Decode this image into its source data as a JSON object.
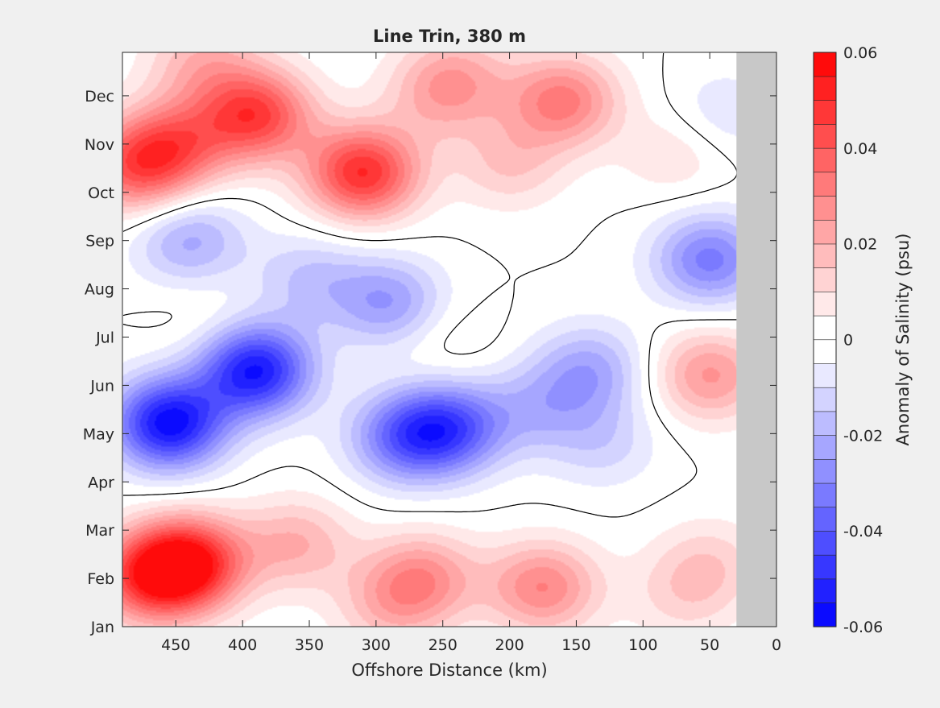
{
  "chart_data": {
    "type": "heatmap",
    "subtype": "filled-contour",
    "title": "Line Trin, 380 m",
    "xlabel": "Offshore Distance (km)",
    "ylabel": "",
    "x_reversed": true,
    "xlim": [
      0,
      490
    ],
    "x_ticks": [
      450,
      400,
      350,
      300,
      250,
      200,
      150,
      100,
      50,
      0
    ],
    "y_ticks": [
      "Jan",
      "Feb",
      "Mar",
      "Apr",
      "May",
      "Jun",
      "Jul",
      "Aug",
      "Sep",
      "Oct",
      "Nov",
      "Dec"
    ],
    "no_data_region_km": [
      0,
      30
    ],
    "colorbar": {
      "label": "Anomaly of Salinity (psu)",
      "range": [
        -0.06,
        0.06
      ],
      "step": 0.005,
      "ticks": [
        "-0.06",
        "-0.04",
        "-0.02",
        "0",
        "0.02",
        "0.04",
        "0.06"
      ],
      "neg_color": "#0000ff",
      "pos_color": "#ff0000",
      "zero_color": "#ffffff"
    },
    "zero_contour_color": "#000000",
    "nodata_color": "#c8c8c8",
    "features": [
      {
        "x": 440,
        "month": 1.3,
        "value": 0.052
      },
      {
        "x": 470,
        "month": 1.0,
        "value": 0.04
      },
      {
        "x": 360,
        "month": 1.7,
        "value": 0.02
      },
      {
        "x": 265,
        "month": 1.0,
        "value": 0.025
      },
      {
        "x": 175,
        "month": 0.8,
        "value": 0.03
      },
      {
        "x": 290,
        "month": 0.4,
        "value": 0.015
      },
      {
        "x": 70,
        "month": 0.6,
        "value": 0.01
      },
      {
        "x": 50,
        "month": 1.3,
        "value": 0.012
      },
      {
        "x": 455,
        "month": 4.2,
        "value": -0.058
      },
      {
        "x": 390,
        "month": 5.3,
        "value": -0.055
      },
      {
        "x": 280,
        "month": 3.9,
        "value": -0.03
      },
      {
        "x": 245,
        "month": 4.1,
        "value": -0.038
      },
      {
        "x": 180,
        "month": 4.5,
        "value": -0.015
      },
      {
        "x": 140,
        "month": 5.3,
        "value": -0.022
      },
      {
        "x": 130,
        "month": 3.8,
        "value": -0.012
      },
      {
        "x": 290,
        "month": 6.7,
        "value": -0.025
      },
      {
        "x": 440,
        "month": 8.0,
        "value": -0.022
      },
      {
        "x": 350,
        "month": 7.2,
        "value": -0.015
      },
      {
        "x": 50,
        "month": 7.6,
        "value": -0.032
      },
      {
        "x": 40,
        "month": 10.6,
        "value": -0.01
      },
      {
        "x": 50,
        "month": 5.2,
        "value": 0.026
      },
      {
        "x": 250,
        "month": 5.9,
        "value": 0.006
      },
      {
        "x": 430,
        "month": 6.4,
        "value": 0.004
      },
      {
        "x": 390,
        "month": 10.6,
        "value": 0.045
      },
      {
        "x": 310,
        "month": 9.4,
        "value": 0.05
      },
      {
        "x": 480,
        "month": 9.5,
        "value": 0.035
      },
      {
        "x": 450,
        "month": 10.0,
        "value": 0.03
      },
      {
        "x": 160,
        "month": 10.9,
        "value": 0.032
      },
      {
        "x": 255,
        "month": 10.9,
        "value": 0.012
      },
      {
        "x": 200,
        "month": 9.6,
        "value": 0.015
      },
      {
        "x": 240,
        "month": 11.4,
        "value": 0.018
      },
      {
        "x": 75,
        "month": 9.8,
        "value": 0.01
      },
      {
        "x": 430,
        "month": 11.7,
        "value": 0.018
      }
    ]
  }
}
